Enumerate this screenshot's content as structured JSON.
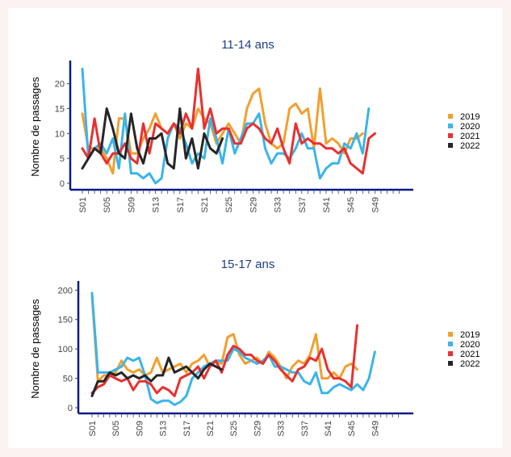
{
  "chart_data": [
    {
      "type": "line",
      "title": "11-14 ans",
      "ylabel": "Nombre de passages",
      "xlabel": "",
      "ylim": [
        0,
        24
      ],
      "yticks": [
        0,
        5,
        10,
        15,
        20
      ],
      "x_tick_labels": [
        "S01",
        "S05",
        "S09",
        "S13",
        "S17",
        "S21",
        "S25",
        "S29",
        "S33",
        "S37",
        "S41",
        "S45",
        "S49"
      ],
      "series": [
        {
          "name": "2019",
          "color": "#f0a030",
          "values": [
            14,
            7,
            7,
            7,
            5,
            2,
            13,
            13,
            6,
            6,
            9,
            11,
            14,
            11,
            10,
            12,
            9,
            12,
            11,
            15,
            13,
            12,
            8,
            10,
            12,
            10,
            8,
            15,
            18,
            19,
            12,
            8,
            7,
            8,
            15,
            16,
            14,
            15,
            7,
            19,
            8,
            9,
            8,
            6,
            9,
            9,
            10
          ]
        },
        {
          "name": "2020",
          "color": "#3cb4e8",
          "values": [
            23,
            5,
            7,
            8,
            6,
            9,
            3,
            14,
            2,
            2,
            1,
            2,
            0,
            1,
            9,
            12,
            11,
            8,
            4,
            6,
            5,
            13,
            9,
            4,
            11,
            6,
            9,
            12,
            12,
            14,
            7,
            4,
            6,
            6,
            5,
            7,
            10,
            7,
            7,
            1,
            3,
            4,
            4,
            8,
            7,
            10,
            6,
            15
          ]
        },
        {
          "name": "2021",
          "color": "#e83030",
          "values": [
            7,
            5,
            13,
            6,
            4,
            6,
            6,
            8,
            5,
            4,
            12,
            6,
            12,
            11,
            10,
            12,
            10,
            14,
            11,
            23,
            11,
            15,
            10,
            11,
            11,
            8,
            8,
            11,
            12,
            11,
            9,
            8,
            11,
            7,
            4,
            12,
            8,
            9,
            8,
            8,
            7,
            7,
            6,
            7,
            4,
            3,
            2,
            9,
            10
          ]
        },
        {
          "name": "2022",
          "color": "#262626",
          "values": [
            3,
            5,
            7,
            6,
            15,
            11,
            6,
            5,
            14,
            7,
            4,
            9,
            9,
            10,
            4,
            3,
            15,
            5,
            9,
            3,
            10,
            7,
            6,
            9
          ]
        }
      ]
    },
    {
      "type": "line",
      "title": "15-17 ans",
      "ylabel": "Nombre de passages",
      "xlabel": "",
      "ylim": [
        0,
        210
      ],
      "yticks": [
        0,
        50,
        100,
        150,
        200
      ],
      "x_tick_labels": [
        "S01",
        "S05",
        "S09",
        "S13",
        "S17",
        "S21",
        "S25",
        "S29",
        "S33",
        "S37",
        "S41",
        "S45",
        "S49"
      ],
      "series": [
        {
          "name": "2019",
          "color": "#f0a030",
          "values": [
            190,
            45,
            55,
            55,
            60,
            80,
            65,
            60,
            65,
            55,
            60,
            85,
            60,
            65,
            70,
            75,
            60,
            75,
            80,
            90,
            70,
            80,
            75,
            120,
            125,
            90,
            75,
            80,
            85,
            75,
            95,
            85,
            70,
            50,
            70,
            80,
            75,
            90,
            125,
            50,
            50,
            60,
            50,
            70,
            75,
            65
          ]
        },
        {
          "name": "2020",
          "color": "#3cb4e8",
          "values": [
            195,
            60,
            60,
            60,
            65,
            70,
            85,
            80,
            85,
            55,
            15,
            8,
            12,
            12,
            5,
            10,
            20,
            50,
            60,
            70,
            75,
            80,
            80,
            80,
            100,
            95,
            85,
            80,
            75,
            80,
            90,
            70,
            70,
            65,
            60,
            60,
            45,
            40,
            60,
            25,
            25,
            35,
            40,
            35,
            30,
            40,
            30,
            50,
            95
          ]
        },
        {
          "name": "2021",
          "color": "#e83030",
          "values": [
            25,
            35,
            40,
            55,
            50,
            45,
            50,
            30,
            45,
            45,
            40,
            25,
            35,
            30,
            20,
            50,
            55,
            60,
            70,
            50,
            70,
            80,
            60,
            90,
            105,
            100,
            90,
            90,
            80,
            75,
            90,
            80,
            65,
            55,
            45,
            65,
            70,
            85,
            80,
            100,
            65,
            50,
            50,
            45,
            35,
            140
          ]
        },
        {
          "name": "2022",
          "color": "#262626",
          "values": [
            20,
            45,
            45,
            60,
            55,
            60,
            50,
            55,
            50,
            55,
            45,
            55,
            55,
            85,
            60,
            65,
            70,
            60,
            50,
            65,
            75,
            70,
            65
          ]
        }
      ]
    }
  ]
}
